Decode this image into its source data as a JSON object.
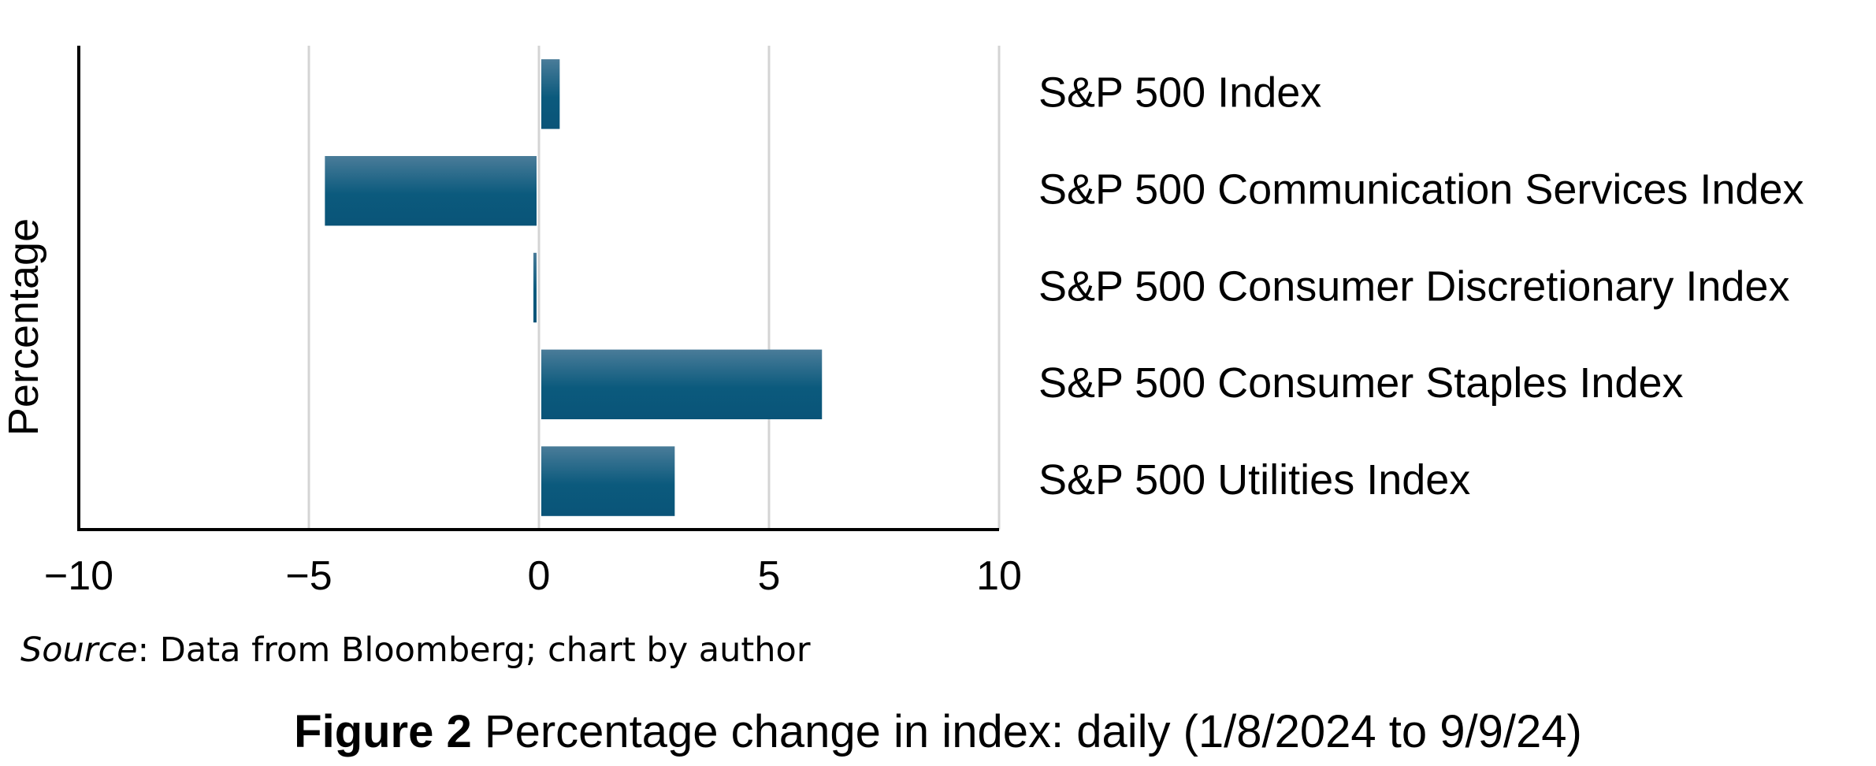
{
  "chart_data": {
    "type": "bar",
    "orientation": "horizontal",
    "ylabel": "Percentage",
    "xlim": [
      -10,
      10
    ],
    "xticks": [
      -10,
      -5,
      0,
      5,
      10
    ],
    "xtick_labels": [
      "−10",
      "−5",
      "0",
      "5",
      "10"
    ],
    "grid": true,
    "categories": [
      "S&P 500 Index",
      "S&P 500 Communication Services Index",
      "S&P 500 Consumer Discretionary Index",
      "S&P 500 Consumer Staples Index",
      "S&P 500 Utilities Index"
    ],
    "values": [
      0.4,
      -4.6,
      -0.05,
      6.1,
      2.9
    ],
    "bar_color": "#0b5a7d"
  },
  "source": {
    "label": "Source",
    "text": ": Data from Bloomberg; chart by author"
  },
  "caption": {
    "figure_number": "Figure 2",
    "text": " Percentage change in index: daily (1/8/2024 to 9/9/24)"
  }
}
